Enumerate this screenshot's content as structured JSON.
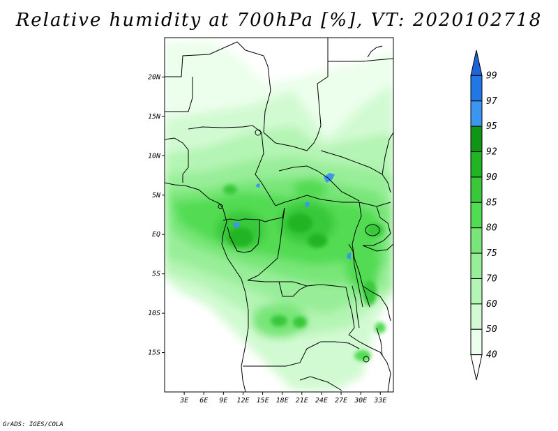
{
  "title": "Relative humidity at 700hPa [%], VT: 2020102718",
  "footer": "GrADS: IGES/COLA",
  "map": {
    "x_ticks": [
      "3E",
      "6E",
      "9E",
      "12E",
      "15E",
      "18E",
      "21E",
      "24E",
      "27E",
      "30E",
      "33E"
    ],
    "y_ticks": [
      "20N",
      "15N",
      "10N",
      "5N",
      "EQ",
      "5S",
      "10S",
      "15S"
    ],
    "x_tick_values": [
      3,
      6,
      9,
      12,
      15,
      18,
      21,
      24,
      27,
      30,
      33
    ],
    "y_tick_values": [
      20,
      15,
      10,
      5,
      0,
      -5,
      -10,
      -15
    ],
    "lon_range": [
      0,
      35
    ],
    "lat_range": [
      -20,
      25
    ]
  },
  "colorbar": {
    "levels": [
      "99",
      "97",
      "95",
      "92",
      "90",
      "85",
      "80",
      "75",
      "70",
      "60",
      "50",
      "40"
    ],
    "colors": [
      "#1e64d8",
      "#1f78e6",
      "#3c96f0",
      "#0f9614",
      "#22b424",
      "#38c83a",
      "#52dc52",
      "#78e678",
      "#98ee98",
      "#b4f4b4",
      "#d2fad2",
      "#ecfeec",
      "#ffffff"
    ]
  }
}
